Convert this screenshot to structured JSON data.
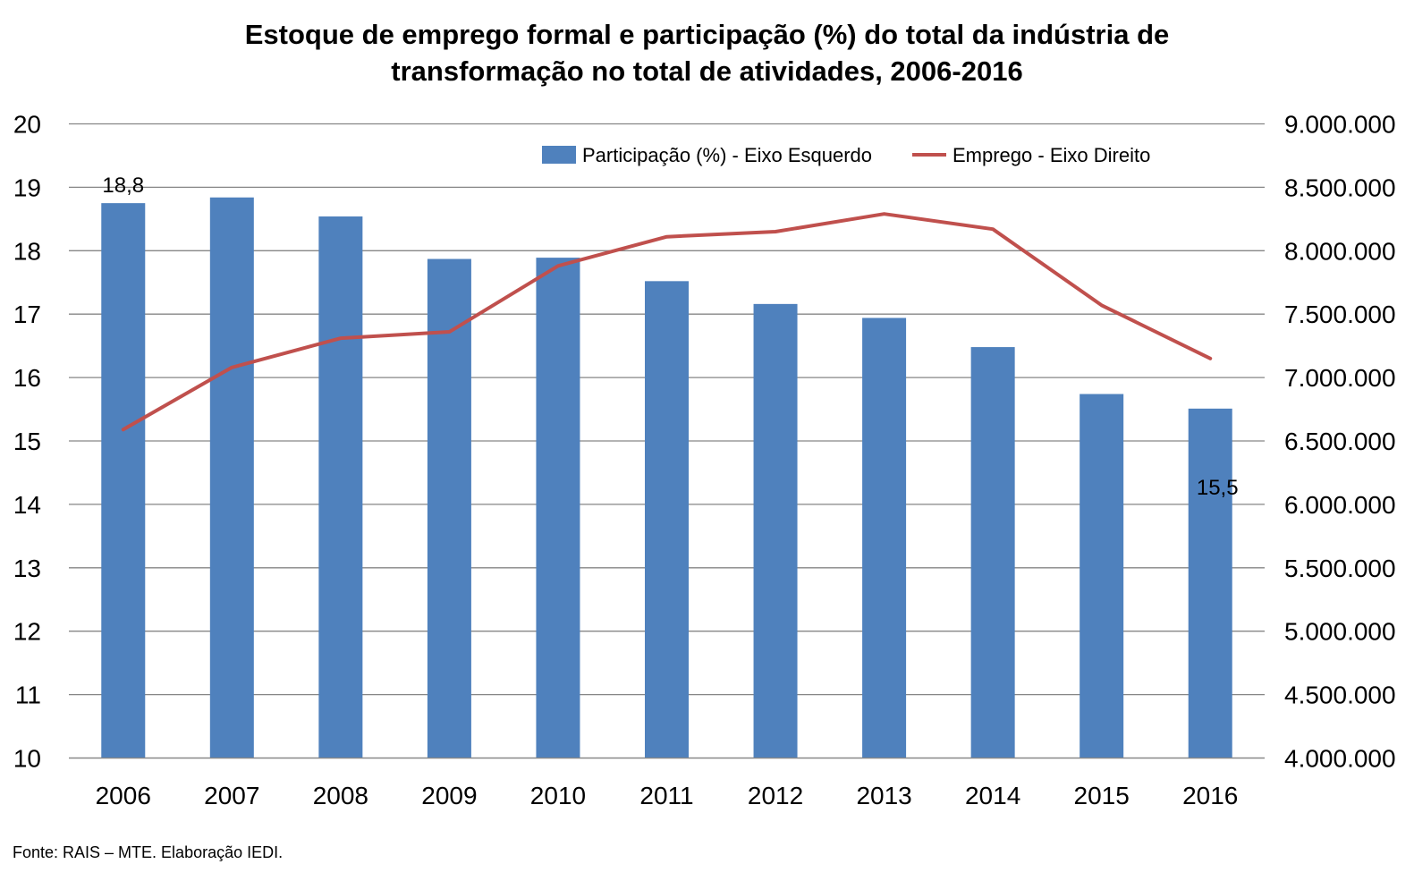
{
  "chart_data": {
    "type": "bar+line",
    "title_lines": [
      "Estoque de emprego formal e participação (%) do total da indústria de",
      "transformação no total de atividades, 2006-2016"
    ],
    "categories": [
      "2006",
      "2007",
      "2008",
      "2009",
      "2010",
      "2011",
      "2012",
      "2013",
      "2014",
      "2015",
      "2016"
    ],
    "series": [
      {
        "name": "Participação (%) - Eixo Esquerdo",
        "type": "bar",
        "axis": "left",
        "color": "#4F81BD",
        "values": [
          18.75,
          18.84,
          18.54,
          17.87,
          17.89,
          17.52,
          17.16,
          16.94,
          16.48,
          15.74,
          15.51
        ]
      },
      {
        "name": "Emprego - Eixo Direito",
        "type": "line",
        "axis": "right",
        "color": "#C0504D",
        "values": [
          6590000,
          7080000,
          7310000,
          7360000,
          7880000,
          8110000,
          8150000,
          8290000,
          8170000,
          7570000,
          7150000
        ]
      }
    ],
    "left_axis": {
      "min": 10,
      "max": 20,
      "step": 1,
      "tick_labels": [
        "10",
        "11",
        "12",
        "13",
        "14",
        "15",
        "16",
        "17",
        "18",
        "19",
        "20"
      ]
    },
    "right_axis": {
      "min": 4000000,
      "max": 9000000,
      "step": 500000,
      "tick_labels": [
        "4.000.000",
        "4.500.000",
        "5.000.000",
        "5.500.000",
        "6.000.000",
        "6.500.000",
        "7.000.000",
        "7.500.000",
        "8.000.000",
        "8.500.000",
        "9.000.000"
      ]
    },
    "data_labels": [
      {
        "category": "2006",
        "text": "18,8"
      },
      {
        "category": "2016",
        "text": "15,5"
      }
    ],
    "legend_position": "top-right",
    "grid": true,
    "gridline_color": "#868686"
  },
  "source_note": "Fonte: RAIS – MTE. Elaboração IEDI."
}
